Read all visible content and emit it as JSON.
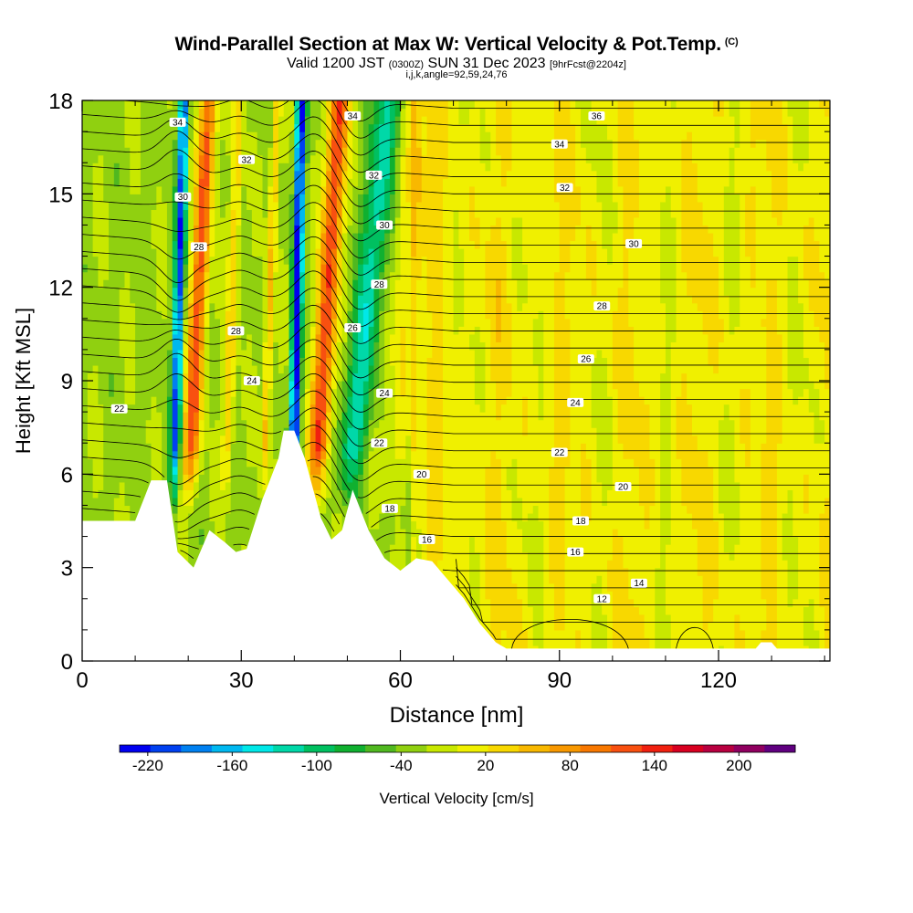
{
  "chart_data": {
    "type": "heatmap",
    "title": "Wind-Parallel Section at Max W: Vertical Velocity & Pot.Temp.",
    "title_mark": "(C)",
    "subtitle_main": "Valid 1200 JST",
    "subtitle_zulu": "(0300Z)",
    "subtitle_date": "SUN 31 Dec 2023",
    "subtitle_fcst": "[9hrFcst@2204z]",
    "subtitle2": "i,j,k,angle=92,59,24,76",
    "xlabel": "Distance [nm]",
    "ylabel": "Height [Kft MSL]",
    "xlim": [
      0,
      141
    ],
    "ylim": [
      0,
      18
    ],
    "x_ticks": [
      0,
      30,
      60,
      90,
      120
    ],
    "y_ticks": [
      0,
      3,
      6,
      9,
      12,
      15,
      18
    ],
    "colorbar": {
      "label": "Vertical Velocity [cm/s]",
      "tick_labels": [
        "-220",
        "-160",
        "-100",
        "-40",
        "20",
        "80",
        "140",
        "200"
      ],
      "range": [
        -240,
        240
      ],
      "colors": [
        "#0000f0",
        "#0040f0",
        "#0080f0",
        "#00b8f0",
        "#00e8e8",
        "#00d8a8",
        "#00c060",
        "#10b030",
        "#50b820",
        "#90d010",
        "#c8e800",
        "#f0f000",
        "#f8d800",
        "#f8b800",
        "#f89800",
        "#f87800",
        "#f85010",
        "#f02010",
        "#d80020",
        "#b80040",
        "#900060",
        "#600080"
      ]
    },
    "terrain_profile": [
      [
        0,
        4.5
      ],
      [
        10,
        4.5
      ],
      [
        13,
        5.8
      ],
      [
        16,
        5.8
      ],
      [
        18,
        3.5
      ],
      [
        21,
        3.0
      ],
      [
        24,
        4.2
      ],
      [
        27,
        3.8
      ],
      [
        29,
        3.5
      ],
      [
        31,
        3.6
      ],
      [
        34,
        5.2
      ],
      [
        37,
        6.5
      ],
      [
        38,
        7.4
      ],
      [
        40,
        7.4
      ],
      [
        42,
        6.5
      ],
      [
        45,
        4.6
      ],
      [
        47,
        3.9
      ],
      [
        49,
        4.2
      ],
      [
        51,
        5.5
      ],
      [
        54,
        4.2
      ],
      [
        57,
        3.3
      ],
      [
        60,
        2.9
      ],
      [
        63,
        3.3
      ],
      [
        66,
        3.2
      ],
      [
        69,
        2.6
      ],
      [
        72,
        2.0
      ],
      [
        75,
        1.2
      ],
      [
        78,
        0.6
      ],
      [
        80,
        0.4
      ],
      [
        127,
        0.4
      ],
      [
        128,
        0.6
      ],
      [
        130,
        0.6
      ],
      [
        131,
        0.4
      ],
      [
        141,
        0.4
      ]
    ],
    "isentropes": [
      {
        "label": "12",
        "y_far": 2.0,
        "label_x": 98,
        "label_y": 2.0
      },
      {
        "label": "14",
        "y_far": 2.5,
        "label_x": 105,
        "label_y": 2.5
      },
      {
        "label": "16",
        "y_far": 3.5,
        "label_x": 93,
        "label_y": 3.5
      },
      {
        "label": "16",
        "y_far": 3.5,
        "label_x": 65,
        "label_y": 3.9
      },
      {
        "label": "18",
        "y_far": 4.3,
        "label_x": 94,
        "label_y": 4.5
      },
      {
        "label": "18",
        "y_far": 4.3,
        "label_x": 58,
        "label_y": 4.9
      },
      {
        "label": "20",
        "y_far": 5.5,
        "label_x": 102,
        "label_y": 5.6
      },
      {
        "label": "20",
        "y_far": 5.5,
        "label_x": 64,
        "label_y": 6.0
      },
      {
        "label": "22",
        "y_far": 6.8,
        "label_x": 90,
        "label_y": 6.7
      },
      {
        "label": "22",
        "y_far": 6.8,
        "label_x": 56,
        "label_y": 7.0
      },
      {
        "label": "22",
        "y_far": 6.8,
        "label_x": 7,
        "label_y": 8.1
      },
      {
        "label": "24",
        "y_far": 8.3,
        "label_x": 93,
        "label_y": 8.3
      },
      {
        "label": "24",
        "y_far": 8.3,
        "label_x": 57,
        "label_y": 8.6
      },
      {
        "label": "24",
        "y_far": 8.3,
        "label_x": 32,
        "label_y": 9.0
      },
      {
        "label": "26",
        "y_far": 9.7,
        "label_x": 95,
        "label_y": 9.7
      },
      {
        "label": "26",
        "y_far": 9.7,
        "label_x": 51,
        "label_y": 10.7
      },
      {
        "label": "28",
        "y_far": 11.2,
        "label_x": 98,
        "label_y": 11.4
      },
      {
        "label": "28",
        "y_far": 11.2,
        "label_x": 56,
        "label_y": 12.1
      },
      {
        "label": "28",
        "y_far": 11.2,
        "label_x": 29,
        "label_y": 10.6
      },
      {
        "label": "28",
        "y_far": 11.2,
        "label_x": 22,
        "label_y": 13.3
      },
      {
        "label": "30",
        "y_far": 13.3,
        "label_x": 104,
        "label_y": 13.4
      },
      {
        "label": "30",
        "y_far": 13.3,
        "label_x": 57,
        "label_y": 14.0
      },
      {
        "label": "30",
        "y_far": 13.3,
        "label_x": 19,
        "label_y": 14.9
      },
      {
        "label": "32",
        "y_far": 15.1,
        "label_x": 91,
        "label_y": 15.2
      },
      {
        "label": "32",
        "y_far": 15.1,
        "label_x": 55,
        "label_y": 15.6
      },
      {
        "label": "32",
        "y_far": 15.1,
        "label_x": 31,
        "label_y": 16.1
      },
      {
        "label": "34",
        "y_far": 16.5,
        "label_x": 90,
        "label_y": 16.6
      },
      {
        "label": "34",
        "y_far": 16.5,
        "label_x": 51,
        "label_y": 17.5
      },
      {
        "label": "34",
        "y_far": 16.5,
        "label_x": 18,
        "label_y": 17.3
      },
      {
        "label": "36",
        "y_far": 17.5,
        "label_x": 97,
        "label_y": 17.5
      }
    ]
  }
}
